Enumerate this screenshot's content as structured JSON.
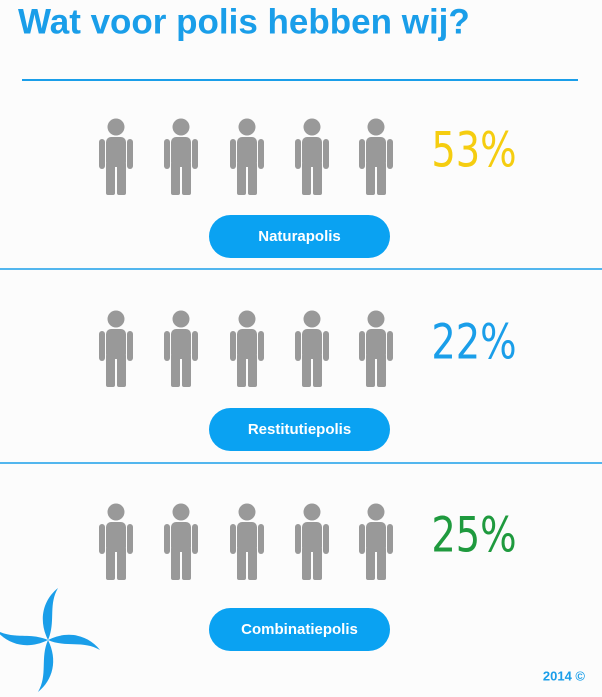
{
  "chart_data": {
    "type": "pictograph",
    "title": "Wat voor polis hebben wij?",
    "categories": [
      "Naturapolis",
      "Restitutiepolis",
      "Combinatiepolis"
    ],
    "values": [
      53,
      22,
      25
    ],
    "value_labels": [
      "53%",
      "22%",
      "25%"
    ],
    "colors": [
      "#f5cd10",
      "#1a9ee9",
      "#1f9a3e"
    ],
    "footer": "2014 ©"
  }
}
